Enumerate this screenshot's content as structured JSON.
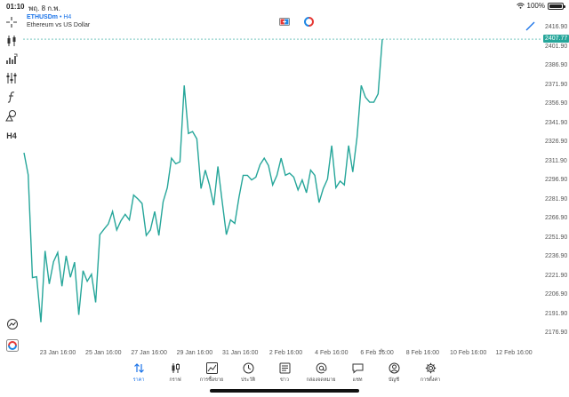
{
  "status_bar": {
    "time": "01:10",
    "date": "พฤ. 8 ก.พ.",
    "battery": "100%"
  },
  "symbol": {
    "ticker": "ETHUSDm",
    "separator": " • ",
    "timeframe": "H4",
    "description": "Ethereum vs US Dollar"
  },
  "left_toolbar": {
    "items": [
      {
        "name": "crosshair-icon"
      },
      {
        "name": "candlestick-type-icon"
      },
      {
        "name": "indicator-icon"
      },
      {
        "name": "settings-sliders-icon"
      },
      {
        "name": "function-icon"
      },
      {
        "name": "shapes-icon"
      },
      {
        "name": "timeframe-button",
        "label": "H4"
      }
    ]
  },
  "price_axis": {
    "ticks": [
      "2416.90",
      "2401.90",
      "2386.90",
      "2371.90",
      "2356.90",
      "2341.90",
      "2326.90",
      "2311.90",
      "2296.90",
      "2281.90",
      "2266.90",
      "2251.90",
      "2236.90",
      "2221.90",
      "2206.90",
      "2191.90",
      "2176.90"
    ],
    "current_price": "2407.77"
  },
  "time_axis": {
    "ticks": [
      "23 Jan 16:00",
      "25 Jan 16:00",
      "27 Jan 16:00",
      "29 Jan 16:00",
      "31 Jan 16:00",
      "2 Feb 16:00",
      "4 Feb 16:00",
      "6 Feb 16:00",
      "8 Feb 16:00",
      "10 Feb 16:00",
      "12 Feb 16:00"
    ]
  },
  "colors": {
    "line": "#26a69a",
    "accent": "#1a73e8",
    "price_badge": "#26a69a"
  },
  "chart_data": {
    "type": "line",
    "title": "",
    "xlabel": "",
    "ylabel": "",
    "ylim": [
      2166.9,
      2426.9
    ],
    "y": [
      2318.5,
      2301.2,
      2220.4,
      2221.1,
      2185.4,
      2241.4,
      2215.5,
      2232.9,
      2240.2,
      2213.7,
      2237.6,
      2220.7,
      2232.6,
      2191.2,
      2225.9,
      2217.6,
      2223.1,
      2201.0,
      2254.2,
      2258.6,
      2262.6,
      2272.4,
      2257.9,
      2265.1,
      2270.2,
      2265.8,
      2285.3,
      2282.3,
      2278.7,
      2253.6,
      2258.0,
      2272.4,
      2253.6,
      2280.1,
      2291.1,
      2314.3,
      2309.9,
      2311.4,
      2371.4,
      2333.7,
      2335.2,
      2329.4,
      2290.4,
      2304.9,
      2293.3,
      2277.3,
      2307.8,
      2280.8,
      2254.2,
      2265.8,
      2263.0,
      2283.6,
      2300.8,
      2300.8,
      2297.2,
      2299.4,
      2309.2,
      2314.3,
      2308.5,
      2293.3,
      2300.8,
      2314.3,
      2300.8,
      2302.5,
      2299.4,
      2289.3,
      2297.2,
      2287.1,
      2304.9,
      2300.8,
      2279.4,
      2290.4,
      2297.9,
      2324.2,
      2291.1,
      2296.3,
      2293.3,
      2324.2,
      2303.4,
      2330.8,
      2371.4,
      2362.2,
      2358.2,
      2358.2,
      2364.8,
      2407.77
    ],
    "current_value": 2407.77
  },
  "tab_bar": {
    "tabs": [
      {
        "key": "quotes",
        "label": "ราคา",
        "active": true
      },
      {
        "key": "chart",
        "label": "กราฟ",
        "active": false
      },
      {
        "key": "trade",
        "label": "การซื้อขาย",
        "active": false
      },
      {
        "key": "history",
        "label": "ประวัติ",
        "active": false
      },
      {
        "key": "news",
        "label": "ข่าว",
        "active": false
      },
      {
        "key": "mailbox",
        "label": "กล่องจดหมาย",
        "active": false
      },
      {
        "key": "chat",
        "label": "แชท",
        "active": false
      },
      {
        "key": "account",
        "label": "บัญชี",
        "active": false
      },
      {
        "key": "settings",
        "label": "การตั้งค่า",
        "active": false
      }
    ]
  }
}
